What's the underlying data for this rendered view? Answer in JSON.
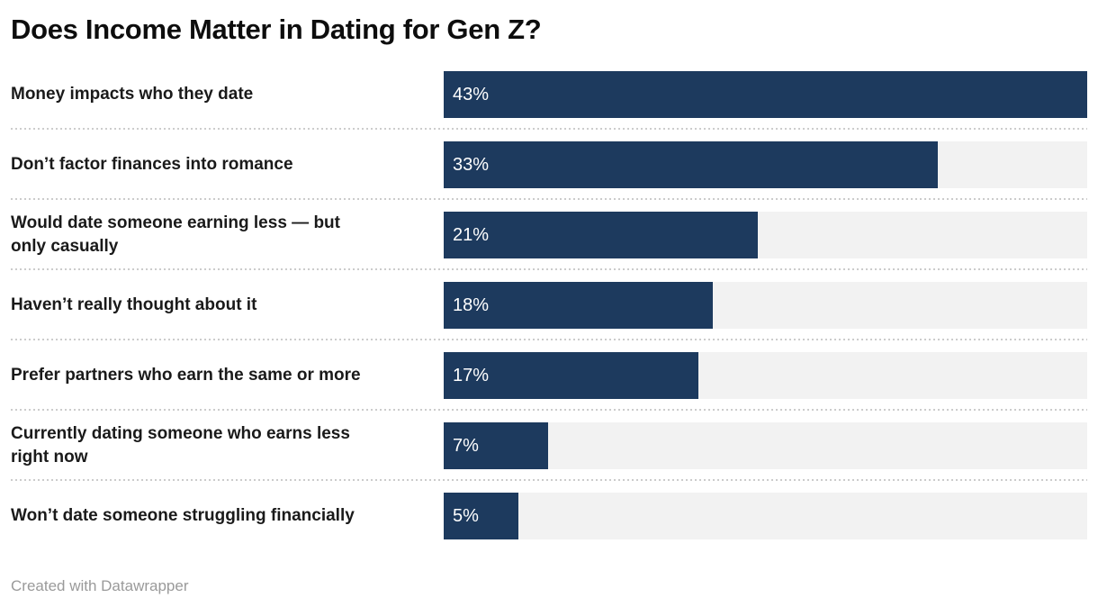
{
  "page": {
    "title": "Does Income Matter in Dating for Gen Z?",
    "footer_credit": "Created with Datawrapper"
  },
  "chart_data": {
    "type": "bar",
    "orientation": "horizontal",
    "title": "Does Income Matter in Dating for Gen Z?",
    "xlabel": "",
    "ylabel": "",
    "xlim": [
      0,
      43
    ],
    "grid": "off",
    "legend": "none",
    "value_label_position": "inside-start",
    "categories": [
      "Money impacts who they date",
      "Don’t factor finances into romance",
      "Would date someone earning less — but only casually",
      "Haven’t really thought about it",
      "Prefer partners who earn the same or more",
      "Currently dating someone who earns less right now",
      "Won’t date someone struggling financially"
    ],
    "values": [
      43,
      33,
      21,
      18,
      17,
      7,
      5
    ],
    "rows": [
      {
        "label": "Money impacts who they date",
        "value": 43,
        "value_label": "43%"
      },
      {
        "label": "Don’t factor finances into romance",
        "value": 33,
        "value_label": "33%"
      },
      {
        "label": "Would date someone earning less — but\nonly casually",
        "value": 21,
        "value_label": "21%"
      },
      {
        "label": "Haven’t really thought about it",
        "value": 18,
        "value_label": "18%"
      },
      {
        "label": "Prefer partners who earn the same or more",
        "value": 17,
        "value_label": "17%"
      },
      {
        "label": "Currently dating someone who earns less\nright now",
        "value": 7,
        "value_label": "7%"
      },
      {
        "label": "Won’t date someone struggling financially",
        "value": 5,
        "value_label": "5%"
      }
    ],
    "colors": {
      "bar": "#1d3a5e",
      "track": "#f2f2f2",
      "separator": "#cccccc",
      "label_text": "#1a1a1a",
      "value_text": "#ffffff",
      "title_text": "#0d0d0d",
      "footer_text": "#9a9a9a"
    }
  }
}
